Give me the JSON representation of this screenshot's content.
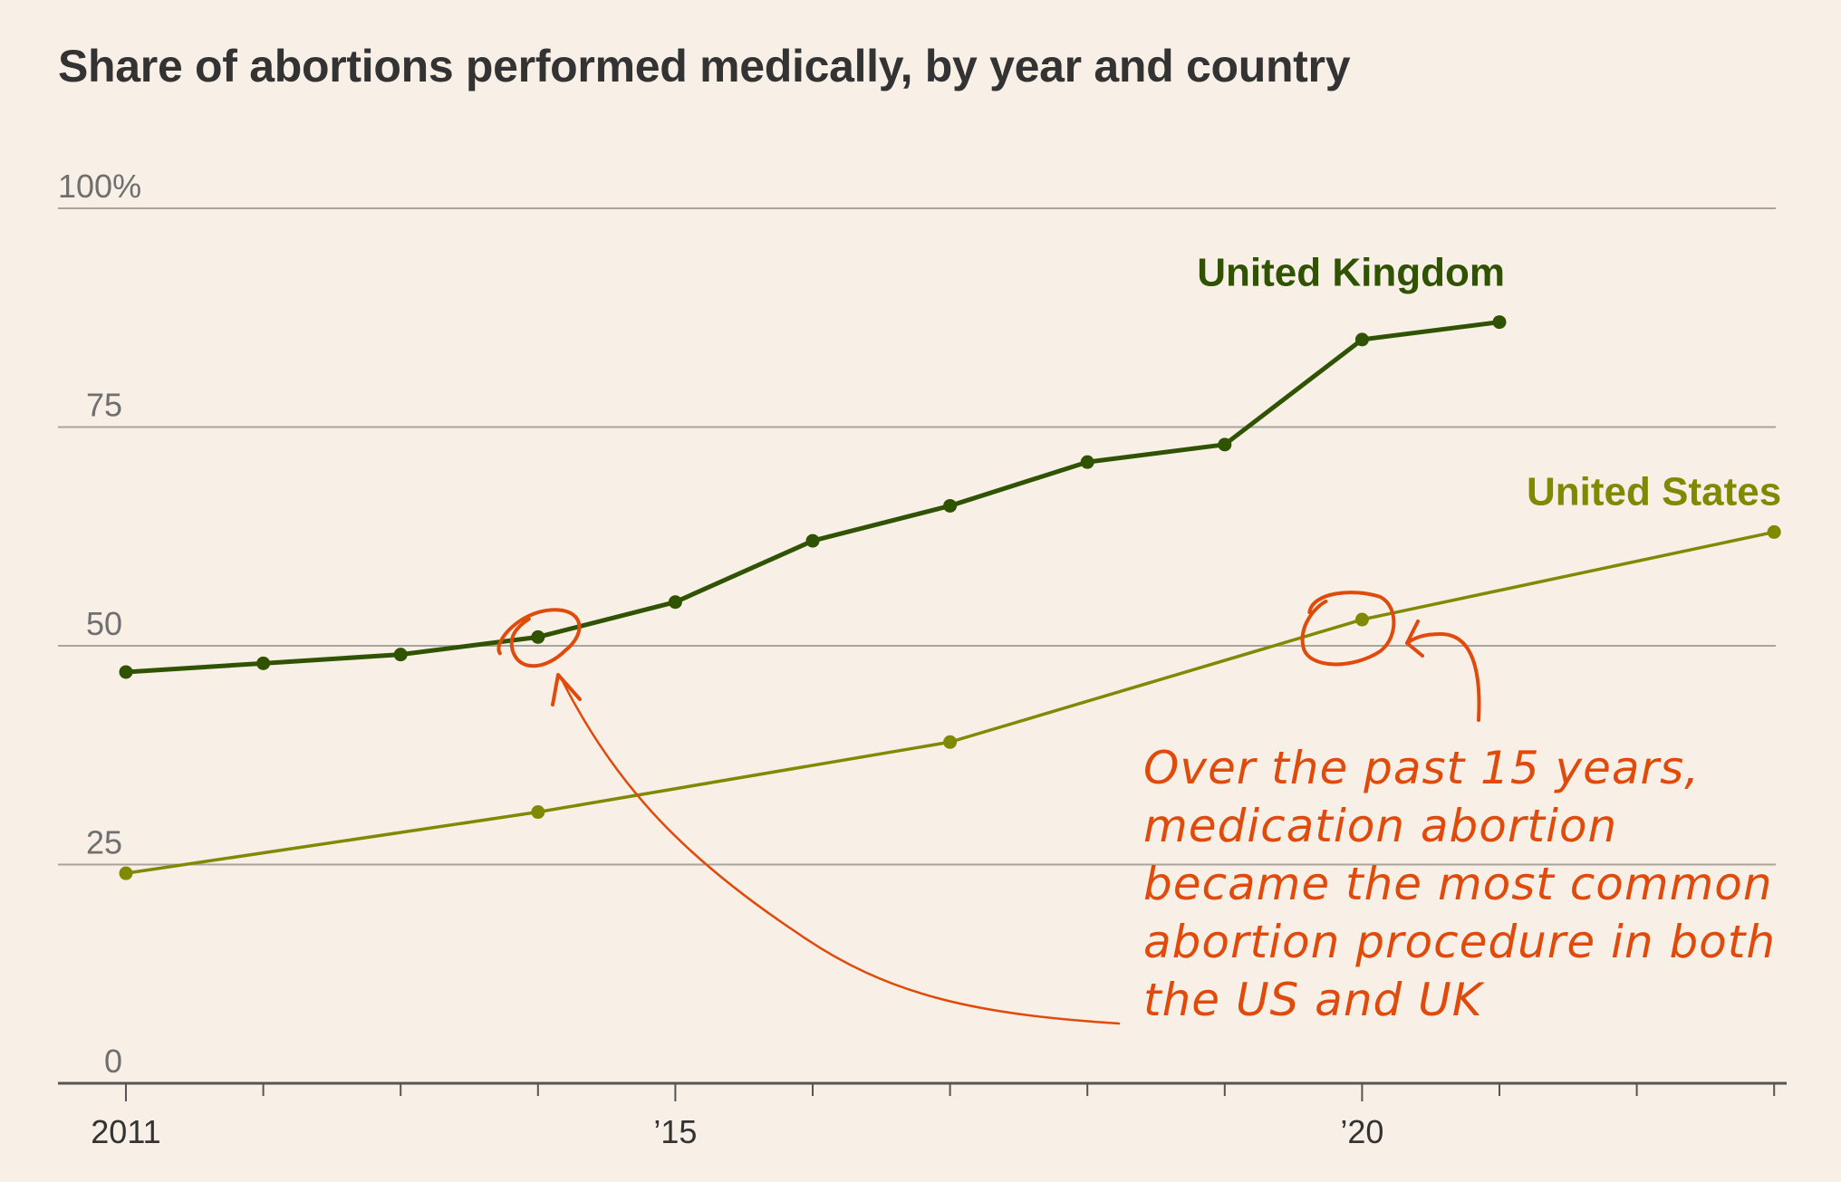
{
  "chart_data": {
    "type": "line",
    "title": "Share of abortions performed medically, by year and country",
    "xlabel": "",
    "ylabel": "",
    "xlim": [
      2011,
      2023
    ],
    "ylim": [
      0,
      100
    ],
    "grid": true,
    "y_ticks": [
      {
        "value": 100,
        "label": "100%"
      },
      {
        "value": 75,
        "label": "75"
      },
      {
        "value": 50,
        "label": "50"
      },
      {
        "value": 25,
        "label": "25"
      },
      {
        "value": 0,
        "label": "0"
      }
    ],
    "x_ticks": [
      {
        "value": 2011,
        "label": "2011"
      },
      {
        "value": 2012,
        "label": ""
      },
      {
        "value": 2013,
        "label": ""
      },
      {
        "value": 2014,
        "label": ""
      },
      {
        "value": 2015,
        "label": "’15"
      },
      {
        "value": 2016,
        "label": ""
      },
      {
        "value": 2017,
        "label": ""
      },
      {
        "value": 2018,
        "label": ""
      },
      {
        "value": 2019,
        "label": ""
      },
      {
        "value": 2020,
        "label": "’20"
      },
      {
        "value": 2021,
        "label": ""
      },
      {
        "value": 2022,
        "label": ""
      },
      {
        "value": 2023,
        "label": ""
      }
    ],
    "series": [
      {
        "name": "United Kingdom",
        "color": "#2f5300",
        "x": [
          2011,
          2012,
          2013,
          2014,
          2015,
          2016,
          2017,
          2018,
          2019,
          2020,
          2021
        ],
        "values": [
          47,
          48,
          49,
          51,
          55,
          62,
          66,
          71,
          73,
          85,
          87
        ]
      },
      {
        "name": "United States",
        "color": "#808a00",
        "x": [
          2011,
          2014,
          2017,
          2020,
          2023
        ],
        "values": [
          24,
          31,
          39,
          53,
          63
        ]
      }
    ],
    "legend": "direct-labels",
    "annotations": [
      {
        "text_lines": [
          "Over the past 15 years,",
          "medication abortion",
          "became the most common",
          "abortion procedure in both",
          "the US and UK"
        ],
        "color": "#e04a0a",
        "style": "handwritten",
        "circled_points": [
          {
            "series": "United Kingdom",
            "x": 2014
          },
          {
            "series": "United States",
            "x": 2020
          }
        ]
      }
    ]
  },
  "colors": {
    "background": "#f8efe6",
    "gridline": "#a8a49e",
    "axis": "#555555",
    "annotation": "#e04a0a"
  }
}
